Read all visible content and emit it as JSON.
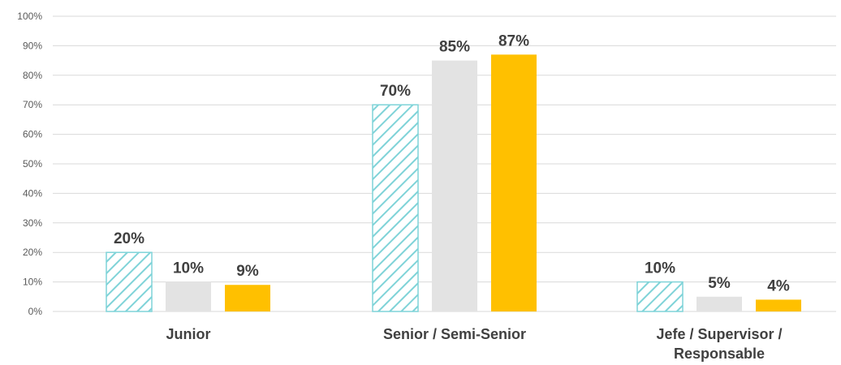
{
  "chart_data": {
    "type": "bar",
    "categories": [
      [
        "Junior"
      ],
      [
        "Senior / Semi-Senior"
      ],
      [
        "Jefe / Supervisor /",
        "Responsable"
      ]
    ],
    "series": [
      {
        "values": [
          20,
          70,
          10
        ],
        "labels": [
          "20%",
          "70%",
          "10%"
        ],
        "pattern": "diagonal-hatch",
        "color": "#7fd3d8"
      },
      {
        "values": [
          10,
          85,
          5
        ],
        "labels": [
          "10%",
          "85%",
          "5%"
        ],
        "color": "#e3e3e3"
      },
      {
        "values": [
          9,
          87,
          4
        ],
        "labels": [
          "9%",
          "87%",
          "4%"
        ],
        "color": "#ffc000"
      }
    ],
    "ylim": [
      0,
      100
    ],
    "yticks": [
      "0%",
      "10%",
      "20%",
      "30%",
      "40%",
      "50%",
      "60%",
      "70%",
      "80%",
      "90%",
      "100%"
    ],
    "grid": true,
    "legend": "none",
    "gridColor": "#d9d9d9"
  }
}
